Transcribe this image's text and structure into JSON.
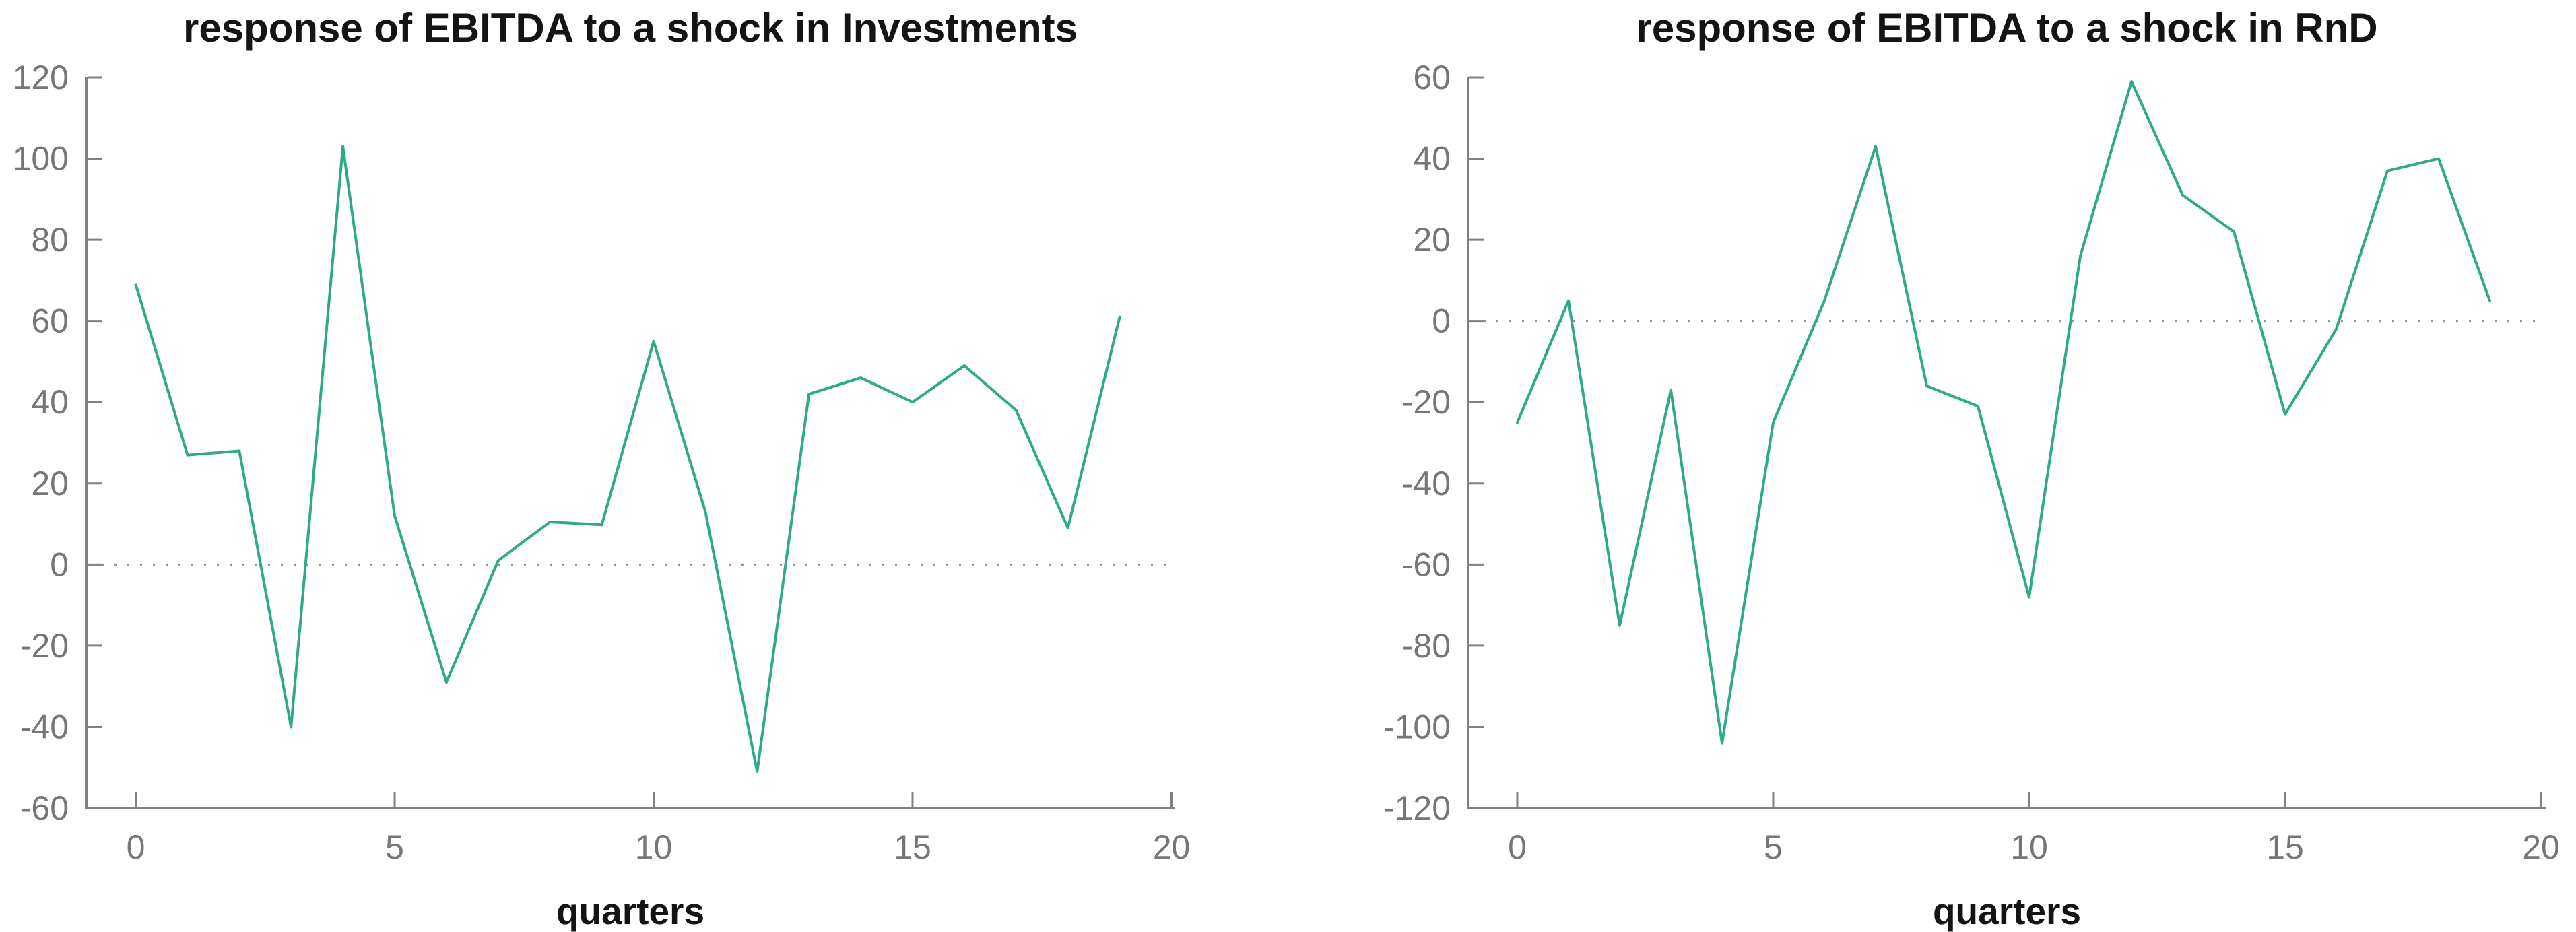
{
  "figure": {
    "background": "#ffffff"
  },
  "colors": {
    "line": "#2EA989",
    "axis": "#808080",
    "tick_label": "#767676",
    "title_text": "#141414",
    "zero_line": "#8C8C8C"
  },
  "chart_data": [
    {
      "type": "line",
      "title": "response of EBITDA to a shock in Investments",
      "xlabel": "quarters",
      "ylabel": "",
      "x": [
        0,
        1,
        2,
        3,
        4,
        5,
        6,
        7,
        8,
        9,
        10,
        11,
        12,
        13,
        14,
        15,
        16,
        17,
        18,
        19
      ],
      "values": [
        69,
        27,
        28,
        -40,
        103,
        12,
        -29,
        1,
        10.5,
        9.8,
        55,
        13,
        -51,
        42,
        46,
        40,
        49,
        38,
        9,
        61
      ],
      "ylim": [
        -60,
        120
      ],
      "xlim": [
        0,
        20
      ],
      "yticks": [
        120,
        100,
        80,
        60,
        40,
        20,
        0,
        -20,
        -40,
        -60
      ],
      "xticks": [
        0,
        5,
        10,
        15,
        20
      ],
      "grid": false,
      "zero_line_dotted": true,
      "legend": null
    },
    {
      "type": "line",
      "title": "response of EBITDA to a shock in RnD",
      "xlabel": "quarters",
      "ylabel": "",
      "x": [
        0,
        1,
        2,
        3,
        4,
        5,
        6,
        7,
        8,
        9,
        10,
        11,
        12,
        13,
        14,
        15,
        16,
        17,
        18,
        19
      ],
      "values": [
        -25,
        5,
        -75,
        -17,
        -104,
        -25,
        5,
        43,
        -16,
        -21,
        -68,
        16,
        59,
        31,
        22,
        -23,
        -2,
        37,
        40,
        5
      ],
      "ylim": [
        -120,
        60
      ],
      "xlim": [
        0,
        20
      ],
      "yticks": [
        60,
        40,
        20,
        0,
        -20,
        -40,
        -60,
        -80,
        -100,
        -120
      ],
      "xticks": [
        0,
        5,
        10,
        15,
        20
      ],
      "grid": false,
      "zero_line_dotted": true,
      "legend": null
    }
  ]
}
